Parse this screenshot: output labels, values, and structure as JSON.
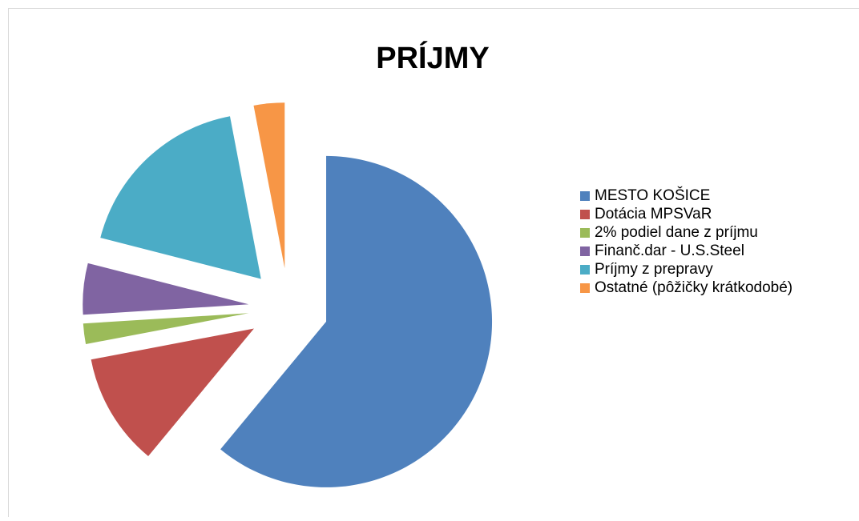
{
  "chart_data": {
    "type": "pie",
    "title": "PRÍJMY",
    "categories": [
      "MESTO KOŠICE",
      "Dotácia MPSVaR",
      "2% podiel dane z príjmu",
      "Finanč.dar - U.S.Steel",
      "Príjmy z prepravy",
      "Ostatné (pôžičky krátkodobé)"
    ],
    "values": [
      61,
      11,
      2,
      5,
      18,
      3
    ],
    "colors": [
      "#4f81bd",
      "#c0504d",
      "#9bbb59",
      "#8064a2",
      "#4bacc6",
      "#f79646"
    ],
    "legend": "right"
  }
}
